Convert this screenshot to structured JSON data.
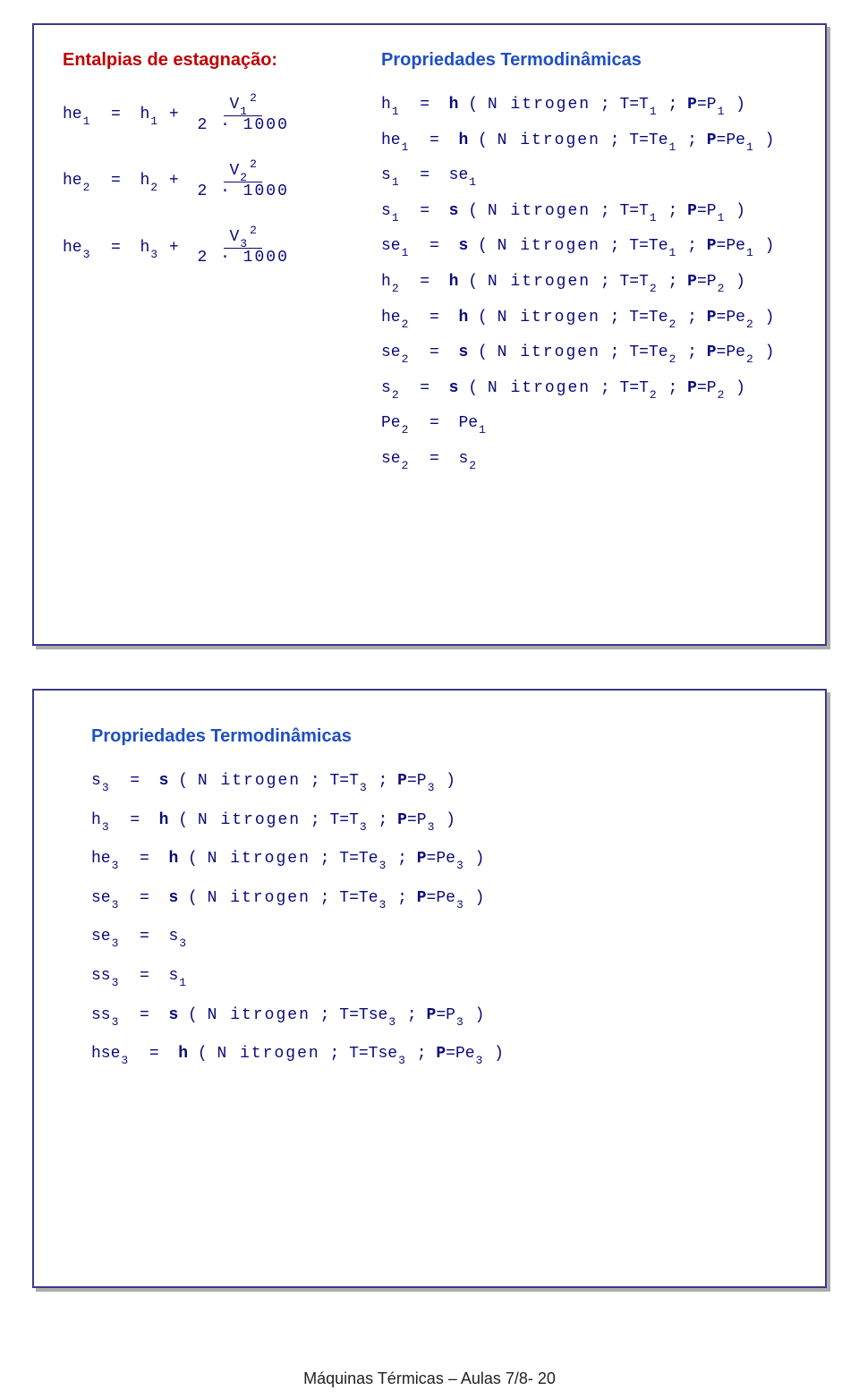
{
  "colors": {
    "border": "#3a3a8a",
    "shadow": "rgba(90,90,90,0.5)",
    "title_red": "#c00000",
    "title_blue": "#1f4fc4",
    "eq_text": "#0a0a7a",
    "background": "#ffffff"
  },
  "panel1": {
    "title_left": "Entalpias de estagnação:",
    "title_right": "Propriedades Termodinâmicas",
    "left_eqs": {
      "he1": {
        "lhs_var": "he",
        "lhs_sub": "1",
        "rhs_var": "h",
        "rhs_sub": "1",
        "num_var": "V",
        "num_sub": "1",
        "num_sup": "2",
        "den": "2 · 1000"
      },
      "he2": {
        "lhs_var": "he",
        "lhs_sub": "2",
        "rhs_var": "h",
        "rhs_sub": "2",
        "num_var": "V",
        "num_sub": "2",
        "num_sup": "2",
        "den": "2 · 1000"
      },
      "he3": {
        "lhs_var": "he",
        "lhs_sub": "3",
        "rhs_var": "h",
        "rhs_sub": "3",
        "num_var": "V",
        "num_sub": "3",
        "num_sup": "2",
        "den": "2 · 1000"
      }
    },
    "right_eqs": [
      {
        "lhs": "h",
        "lsub": "1",
        "fn": "h",
        "arg": "N itrogen",
        "t": "T",
        "tsub": "1",
        "p": "P",
        "psub": "1"
      },
      {
        "lhs": "he",
        "lsub": "1",
        "fn": "h",
        "arg": "N itrogen",
        "t": "Te",
        "tsub": "1",
        "p": "Pe",
        "psub": "1"
      },
      {
        "simple_lhs": "s",
        "simple_lsub": "1",
        "simple_rhs": "se",
        "simple_rsub": "1"
      },
      {
        "lhs": "s",
        "lsub": "1",
        "fn": "s",
        "arg": "N itrogen",
        "t": "T",
        "tsub": "1",
        "p": "P",
        "psub": "1"
      },
      {
        "lhs": "se",
        "lsub": "1",
        "fn": "s",
        "arg": "N itrogen",
        "t": "Te",
        "tsub": "1",
        "p": "Pe",
        "psub": "1"
      },
      {
        "lhs": "h",
        "lsub": "2",
        "fn": "h",
        "arg": "N itrogen",
        "t": "T",
        "tsub": "2",
        "p": "P",
        "psub": "2"
      },
      {
        "lhs": "he",
        "lsub": "2",
        "fn": "h",
        "arg": "N itrogen",
        "t": "Te",
        "tsub": "2",
        "p": "Pe",
        "psub": "2"
      },
      {
        "lhs": "se",
        "lsub": "2",
        "fn": "s",
        "arg": "N itrogen",
        "t": "Te",
        "tsub": "2",
        "p": "Pe",
        "psub": "2"
      },
      {
        "lhs": "s",
        "lsub": "2",
        "fn": "s",
        "arg": "N itrogen",
        "t": "T",
        "tsub": "2",
        "p": "P",
        "psub": "2"
      },
      {
        "simple_lhs": "Pe",
        "simple_lsub": "2",
        "simple_rhs": "Pe",
        "simple_rsub": "1"
      },
      {
        "simple_lhs": "se",
        "simple_lsub": "2",
        "simple_rhs": "s",
        "simple_rsub": "2"
      }
    ]
  },
  "panel2": {
    "title": "Propriedades Termodinâmicas",
    "eqs": [
      {
        "lhs": "s",
        "lsub": "3",
        "fn": "s",
        "arg": "N itrogen",
        "t": "T",
        "tsub": "3",
        "p": "P",
        "psub": "3"
      },
      {
        "lhs": "h",
        "lsub": "3",
        "fn": "h",
        "arg": "N itrogen",
        "t": "T",
        "tsub": "3",
        "p": "P",
        "psub": "3"
      },
      {
        "lhs": "he",
        "lsub": "3",
        "fn": "h",
        "arg": "N itrogen",
        "t": "Te",
        "tsub": "3",
        "p": "Pe",
        "psub": "3"
      },
      {
        "lhs": "se",
        "lsub": "3",
        "fn": "s",
        "arg": "N itrogen",
        "t": "Te",
        "tsub": "3",
        "p": "Pe",
        "psub": "3"
      },
      {
        "simple_lhs": "se",
        "simple_lsub": "3",
        "simple_rhs": "s",
        "simple_rsub": "3"
      },
      {
        "simple_lhs": "ss",
        "simple_lsub": "3",
        "simple_rhs": "s",
        "simple_rsub": "1"
      },
      {
        "lhs": "ss",
        "lsub": "3",
        "fn": "s",
        "arg": "N itrogen",
        "t": "Tse",
        "tsub": "3",
        "p": "P",
        "psub": "3"
      },
      {
        "lhs": "hse",
        "lsub": "3",
        "fn": "h",
        "arg": "N itrogen",
        "t": "Tse",
        "tsub": "3",
        "p": "Pe",
        "psub": "3"
      }
    ]
  },
  "footer": "Máquinas Térmicas – Aulas 7/8- 20"
}
